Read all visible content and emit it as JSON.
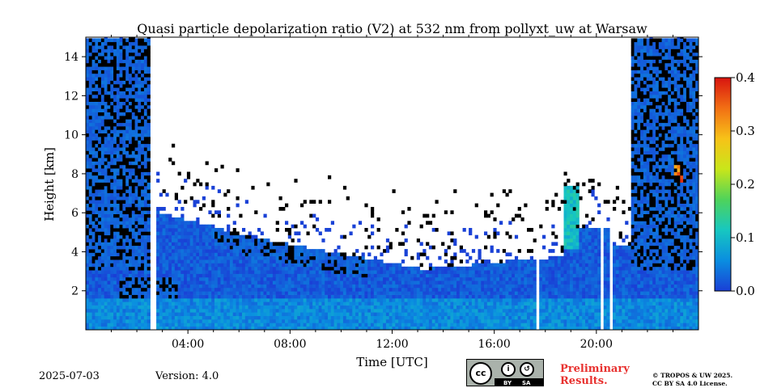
{
  "chart_data": {
    "type": "heatmap",
    "title": "Quasi particle depolarization ratio (V2) at 532 nm from pollyxt_uw at Warsaw",
    "xlabel": "Time [UTC]",
    "ylabel": "Height [km]",
    "xlim": [
      0,
      24
    ],
    "ylim": [
      0,
      15
    ],
    "x_ticks": [
      {
        "v": 4,
        "label": "04:00"
      },
      {
        "v": 8,
        "label": "08:00"
      },
      {
        "v": 12,
        "label": "12:00"
      },
      {
        "v": 16,
        "label": "16:00"
      },
      {
        "v": 20,
        "label": "20:00"
      }
    ],
    "y_ticks": [
      {
        "v": 2,
        "label": "2"
      },
      {
        "v": 4,
        "label": "4"
      },
      {
        "v": 6,
        "label": "6"
      },
      {
        "v": 8,
        "label": "8"
      },
      {
        "v": 10,
        "label": "10"
      },
      {
        "v": 12,
        "label": "12"
      },
      {
        "v": 14,
        "label": "14"
      }
    ],
    "colorbar": {
      "range": [
        0.0,
        0.4
      ],
      "ticks": [
        {
          "v": 0.0,
          "label": "0.0"
        },
        {
          "v": 0.1,
          "label": "0.1"
        },
        {
          "v": 0.2,
          "label": "0.2"
        },
        {
          "v": 0.3,
          "label": "0.3"
        },
        {
          "v": 0.4,
          "label": "0.4"
        }
      ],
      "colors": [
        "#1a3fd6",
        "#0a8ee0",
        "#17c7c0",
        "#4fd35a",
        "#c9e61a",
        "#f7c218",
        "#f26f14",
        "#d8140f"
      ]
    },
    "regions": [
      {
        "t": [
          0,
          24
        ],
        "h": [
          0,
          1.5
        ],
        "value": 0.04,
        "note": "aerosol layer near surface"
      },
      {
        "t": [
          0,
          2.6
        ],
        "h": [
          0,
          14.9
        ],
        "value": 0.01,
        "note": "dense noisy layer"
      },
      {
        "t": [
          21.3,
          24
        ],
        "h": [
          0,
          14.9
        ],
        "value": 0.01,
        "note": "dense noisy layer"
      },
      {
        "t": [
          18.7,
          19.3
        ],
        "h": [
          4.0,
          7.2
        ],
        "value": 0.12
      },
      {
        "t": [
          23.0,
          23.3
        ],
        "h": [
          7.5,
          8.3
        ],
        "value": 0.35
      }
    ],
    "data_gaps": [
      [
        2.5,
        2.65
      ],
      [
        17.4,
        17.5
      ],
      [
        17.6,
        17.7
      ],
      [
        20.1,
        20.25
      ],
      [
        20.4,
        20.55
      ]
    ],
    "legend": "right"
  },
  "footer": {
    "date": "2025-07-03",
    "version": "Version: 4.0",
    "prelim_line1": "Preliminary",
    "prelim_line2": "Results.",
    "copyright_line1": "© TROPOS & UW 2025.",
    "copyright_line2": "CC BY SA 4.0 License.",
    "license_badge": {
      "cc": "cc",
      "by": "BY",
      "sa": "SA"
    }
  }
}
